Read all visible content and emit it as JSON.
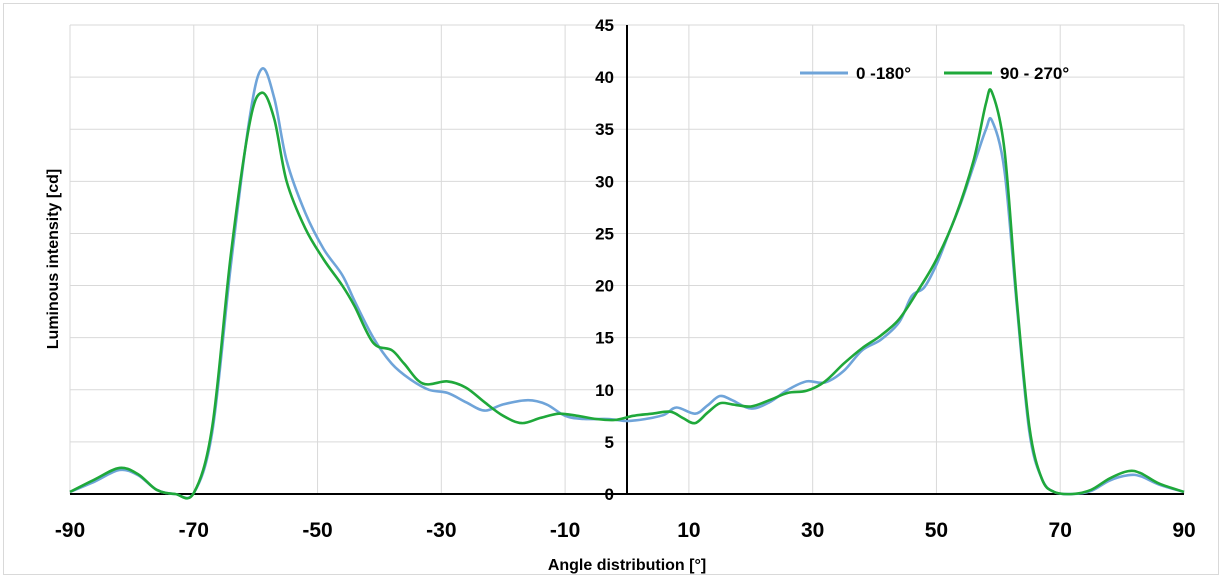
{
  "chart_data": {
    "type": "line",
    "title": "",
    "xlabel": "Angle distribution [°]",
    "ylabel": "Luminous intensity [cd]",
    "xlim": [
      -90,
      90
    ],
    "ylim": [
      0,
      45
    ],
    "x_ticks": [
      -90,
      -70,
      -50,
      -30,
      -10,
      10,
      30,
      50,
      70,
      90
    ],
    "y_ticks": [
      0,
      5,
      10,
      15,
      20,
      25,
      30,
      35,
      40,
      45
    ],
    "grid": true,
    "legend_position": "top-right",
    "series": [
      {
        "name": "0 -180°",
        "color": "#6fa4d9",
        "points": [
          [
            -90,
            0.2
          ],
          [
            -86,
            1.2
          ],
          [
            -82,
            2.3
          ],
          [
            -79,
            1.8
          ],
          [
            -76,
            0.4
          ],
          [
            -73,
            0.0
          ],
          [
            -70,
            0.1
          ],
          [
            -67,
            6.0
          ],
          [
            -64,
            22.0
          ],
          [
            -61,
            36.0
          ],
          [
            -59,
            40.8
          ],
          [
            -57,
            38.0
          ],
          [
            -55,
            32.0
          ],
          [
            -52,
            27.0
          ],
          [
            -49,
            23.5
          ],
          [
            -46,
            21.0
          ],
          [
            -44,
            18.5
          ],
          [
            -41,
            15.0
          ],
          [
            -38,
            12.5
          ],
          [
            -35,
            11.0
          ],
          [
            -32,
            10.0
          ],
          [
            -29,
            9.7
          ],
          [
            -26,
            8.8
          ],
          [
            -23,
            8.0
          ],
          [
            -20,
            8.6
          ],
          [
            -16,
            9.0
          ],
          [
            -13,
            8.6
          ],
          [
            -10,
            7.5
          ],
          [
            -7,
            7.2
          ],
          [
            -3,
            7.2
          ],
          [
            0,
            7.0
          ],
          [
            3,
            7.2
          ],
          [
            6,
            7.6
          ],
          [
            8,
            8.3
          ],
          [
            11,
            7.7
          ],
          [
            13,
            8.5
          ],
          [
            15,
            9.4
          ],
          [
            17,
            9.0
          ],
          [
            20,
            8.2
          ],
          [
            23,
            8.8
          ],
          [
            26,
            10.0
          ],
          [
            29,
            10.8
          ],
          [
            32,
            10.7
          ],
          [
            35,
            11.8
          ],
          [
            38,
            13.8
          ],
          [
            41,
            14.8
          ],
          [
            44,
            16.5
          ],
          [
            46,
            19.0
          ],
          [
            48,
            19.8
          ],
          [
            50,
            22.0
          ],
          [
            52,
            25.0
          ],
          [
            54,
            28.0
          ],
          [
            56,
            31.5
          ],
          [
            58,
            35.0
          ],
          [
            59,
            35.8
          ],
          [
            61,
            31.0
          ],
          [
            63,
            18.0
          ],
          [
            65,
            6.0
          ],
          [
            67,
            1.5
          ],
          [
            69,
            0.2
          ],
          [
            72,
            0.0
          ],
          [
            75,
            0.3
          ],
          [
            78,
            1.3
          ],
          [
            81,
            1.8
          ],
          [
            83,
            1.7
          ],
          [
            86,
            0.9
          ],
          [
            90,
            0.2
          ]
        ]
      },
      {
        "name": "90 - 270°",
        "color": "#1fa83a",
        "points": [
          [
            -90,
            0.2
          ],
          [
            -86,
            1.4
          ],
          [
            -82,
            2.5
          ],
          [
            -79,
            1.9
          ],
          [
            -76,
            0.4
          ],
          [
            -73,
            0.0
          ],
          [
            -70,
            0.1
          ],
          [
            -67,
            6.5
          ],
          [
            -64,
            23.0
          ],
          [
            -61,
            35.5
          ],
          [
            -59,
            38.5
          ],
          [
            -57,
            36.0
          ],
          [
            -55,
            30.0
          ],
          [
            -52,
            25.5
          ],
          [
            -49,
            22.5
          ],
          [
            -46,
            20.0
          ],
          [
            -44,
            18.0
          ],
          [
            -41,
            14.5
          ],
          [
            -38,
            13.8
          ],
          [
            -36,
            12.5
          ],
          [
            -33,
            10.6
          ],
          [
            -29,
            10.8
          ],
          [
            -26,
            10.2
          ],
          [
            -23,
            8.8
          ],
          [
            -20,
            7.5
          ],
          [
            -17,
            6.8
          ],
          [
            -14,
            7.3
          ],
          [
            -11,
            7.7
          ],
          [
            -8,
            7.5
          ],
          [
            -5,
            7.2
          ],
          [
            -2,
            7.1
          ],
          [
            1,
            7.5
          ],
          [
            4,
            7.7
          ],
          [
            7,
            7.9
          ],
          [
            9,
            7.3
          ],
          [
            11,
            6.8
          ],
          [
            13,
            7.8
          ],
          [
            15,
            8.7
          ],
          [
            17,
            8.6
          ],
          [
            20,
            8.4
          ],
          [
            23,
            9.0
          ],
          [
            26,
            9.7
          ],
          [
            29,
            9.9
          ],
          [
            32,
            10.8
          ],
          [
            35,
            12.5
          ],
          [
            38,
            14.0
          ],
          [
            41,
            15.2
          ],
          [
            44,
            16.8
          ],
          [
            47,
            19.5
          ],
          [
            50,
            22.5
          ],
          [
            53,
            26.5
          ],
          [
            56,
            32.0
          ],
          [
            58,
            37.5
          ],
          [
            59,
            38.5
          ],
          [
            61,
            33.0
          ],
          [
            63,
            18.5
          ],
          [
            65,
            6.5
          ],
          [
            67,
            1.5
          ],
          [
            69,
            0.2
          ],
          [
            72,
            0.0
          ],
          [
            75,
            0.4
          ],
          [
            78,
            1.5
          ],
          [
            81,
            2.2
          ],
          [
            83,
            2.0
          ],
          [
            86,
            1.0
          ],
          [
            90,
            0.2
          ]
        ]
      }
    ]
  }
}
